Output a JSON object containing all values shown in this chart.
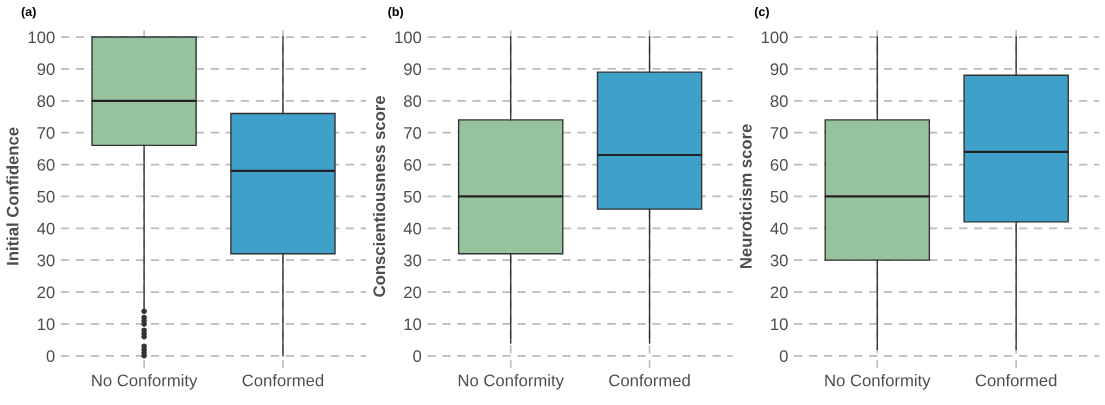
{
  "chart_data": [
    {
      "type": "box",
      "title": "(a)",
      "ylabel": "Initial Confidence",
      "categories": [
        "No Conformity",
        "Conformed"
      ],
      "colors": [
        "#96c29d",
        "#3fa0c9"
      ],
      "ylim": [
        -4,
        104
      ],
      "yticks": [
        0,
        10,
        20,
        30,
        40,
        50,
        60,
        70,
        80,
        90,
        100
      ],
      "grid": true,
      "boxes": [
        {
          "low": 15,
          "q1": 66,
          "median": 80,
          "q3": 100,
          "high": 100,
          "outliers": [
            14,
            12,
            11,
            10,
            8,
            7,
            6,
            3,
            2,
            1,
            0
          ]
        },
        {
          "low": 0,
          "q1": 32,
          "median": 58,
          "q3": 76,
          "high": 100
        }
      ]
    },
    {
      "type": "box",
      "title": "(b)",
      "ylabel": "Conscientiousness score",
      "categories": [
        "No Conformity",
        "Conformed"
      ],
      "colors": [
        "#96c29d",
        "#3fa0c9"
      ],
      "ylim": [
        -4,
        104
      ],
      "yticks": [
        0,
        10,
        20,
        30,
        40,
        50,
        60,
        70,
        80,
        90,
        100
      ],
      "grid": true,
      "boxes": [
        {
          "low": 4,
          "q1": 32,
          "median": 50,
          "q3": 74,
          "high": 100
        },
        {
          "low": 4,
          "q1": 46,
          "median": 63,
          "q3": 89,
          "high": 100
        }
      ]
    },
    {
      "type": "box",
      "title": "(c)",
      "ylabel": "Neuroticism score",
      "categories": [
        "No Conformity",
        "Conformed"
      ],
      "colors": [
        "#96c29d",
        "#3fa0c9"
      ],
      "ylim": [
        -4,
        104
      ],
      "yticks": [
        0,
        10,
        20,
        30,
        40,
        50,
        60,
        70,
        80,
        90,
        100
      ],
      "grid": true,
      "boxes": [
        {
          "low": 2,
          "q1": 30,
          "median": 50,
          "q3": 74,
          "high": 100
        },
        {
          "low": 2,
          "q1": 42,
          "median": 64,
          "q3": 88,
          "high": 100
        }
      ]
    }
  ]
}
